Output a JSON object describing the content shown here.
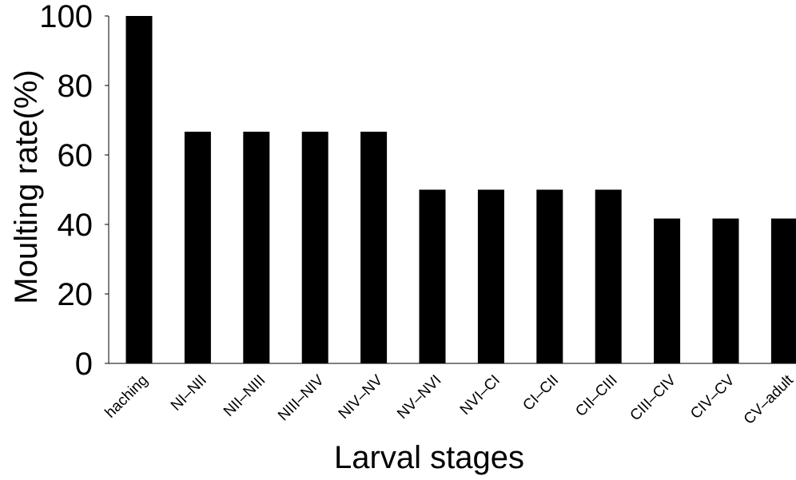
{
  "chart_data": {
    "type": "bar",
    "title": "",
    "xlabel": "Larval stages",
    "ylabel": "Moulting rate(%)",
    "ylim": [
      0,
      100
    ],
    "yticks": [
      0,
      20,
      40,
      60,
      80,
      100
    ],
    "grid": false,
    "categories": [
      "haching",
      "NI–NII",
      "NII–NIII",
      "NIII–NIV",
      "NIV–NV",
      "NV–NVI",
      "NVI–CI",
      "CI–CII",
      "CII–CIII",
      "CIII–CIV",
      "CIV–CV",
      "CV–adult"
    ],
    "values": [
      100,
      66.7,
      66.7,
      66.7,
      66.7,
      50,
      50,
      50,
      50,
      41.7,
      41.7,
      41.7
    ],
    "colors": {
      "bar": "#000000",
      "axis": "#000000",
      "background": "#ffffff"
    }
  }
}
